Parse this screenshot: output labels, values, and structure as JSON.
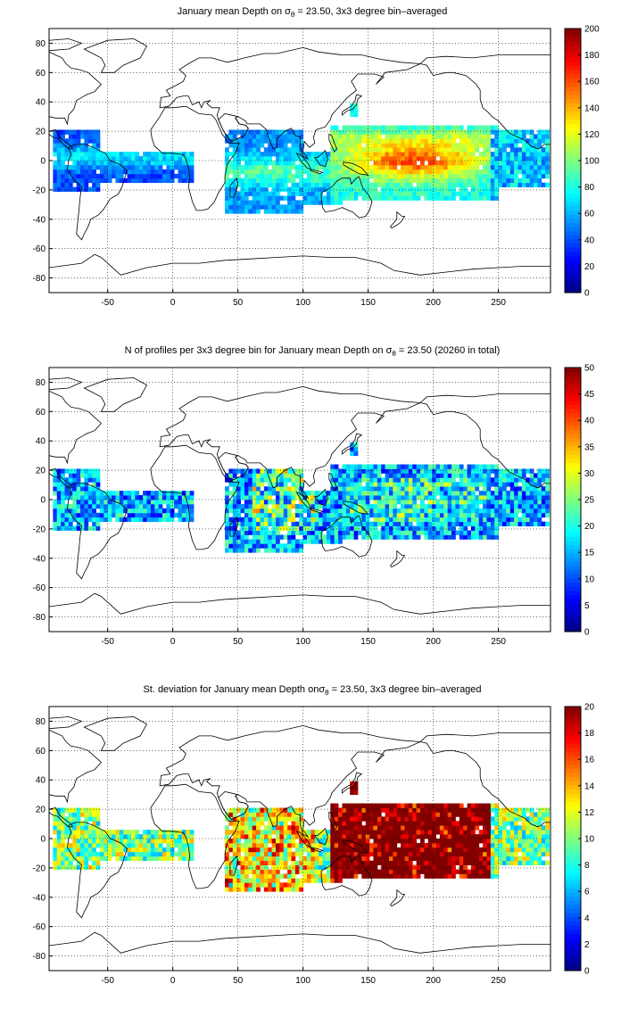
{
  "chart_data": [
    {
      "type": "heatmap",
      "title_parts": {
        "pre": "January mean Depth on ",
        "sym": "σ",
        "sub": "θ",
        "post": " = 23.50, 3x3 degree bin–averaged"
      },
      "xlim": [
        -95,
        290
      ],
      "ylim": [
        -90,
        90
      ],
      "xticks": [
        -50,
        0,
        50,
        100,
        150,
        200,
        250
      ],
      "yticks": [
        -80,
        -60,
        -40,
        -20,
        0,
        20,
        40,
        60,
        80
      ],
      "grid": true,
      "colorbar": {
        "min": 0,
        "max": 200,
        "ticks": [
          0,
          20,
          40,
          60,
          80,
          100,
          120,
          140,
          160,
          180,
          200
        ],
        "colormap": "jet"
      },
      "field": "depth"
    },
    {
      "type": "heatmap",
      "title_parts": {
        "pre": "N of profiles per 3x3 degree bin for January mean Depth on ",
        "sym": "σ",
        "sub": "θ",
        "post": " = 23.50 (20260 in total)"
      },
      "xlim": [
        -95,
        290
      ],
      "ylim": [
        -90,
        90
      ],
      "xticks": [
        -50,
        0,
        50,
        100,
        150,
        200,
        250
      ],
      "yticks": [
        -80,
        -60,
        -40,
        -20,
        0,
        20,
        40,
        60,
        80
      ],
      "grid": true,
      "colorbar": {
        "min": 0,
        "max": 50,
        "ticks": [
          0,
          5,
          10,
          15,
          20,
          25,
          30,
          35,
          40,
          45,
          50
        ],
        "colormap": "jet"
      },
      "field": "count"
    },
    {
      "type": "heatmap",
      "title_parts": {
        "pre": "St. deviation for January mean Depth on",
        "sym": "σ",
        "sub": "θ",
        "post": " = 23.50, 3x3 degree bin–averaged"
      },
      "xlim": [
        -95,
        290
      ],
      "ylim": [
        -90,
        90
      ],
      "xticks": [
        -50,
        0,
        50,
        100,
        150,
        200,
        250
      ],
      "yticks": [
        -80,
        -60,
        -40,
        -20,
        0,
        20,
        40,
        60,
        80
      ],
      "grid": true,
      "colorbar": {
        "min": 0,
        "max": 20,
        "ticks": [
          0,
          2,
          4,
          6,
          8,
          10,
          12,
          14,
          16,
          18,
          20
        ],
        "colormap": "jet"
      },
      "field": "std"
    }
  ],
  "bin_size_deg": 3,
  "data_regions": [
    {
      "name": "tropical-atlantic-west",
      "lon": [
        -93,
        -57
      ],
      "lat": [
        -20,
        20
      ]
    },
    {
      "name": "tropical-atlantic-east",
      "lon": [
        -60,
        15
      ],
      "lat": [
        -15,
        5
      ]
    },
    {
      "name": "western-indian",
      "lon": [
        40,
        100
      ],
      "lat": [
        -35,
        20
      ]
    },
    {
      "name": "eastern-indian",
      "lon": [
        97,
        130
      ],
      "lat": [
        -30,
        5
      ]
    },
    {
      "name": "pacific-warm-pool",
      "lon": [
        120,
        250
      ],
      "lat": [
        -28,
        25
      ]
    },
    {
      "name": "eastern-pacific",
      "lon": [
        245,
        290
      ],
      "lat": [
        -18,
        20
      ]
    },
    {
      "name": "japan-coast",
      "lon": [
        135,
        142
      ],
      "lat": [
        30,
        40
      ]
    }
  ],
  "colors": {
    "grid": "#000000",
    "coast": "#000000",
    "background": "#ffffff"
  }
}
